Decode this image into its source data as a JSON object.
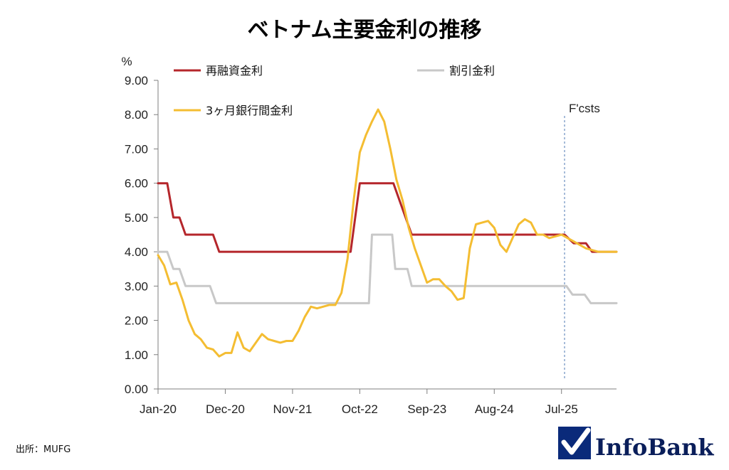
{
  "title": "ベトナム主要金利の推移",
  "source": "出所：MUFG",
  "brand": {
    "name": "InfoBank",
    "color": "#0a1e5a"
  },
  "forecast_label": "F'csts",
  "chart_data": {
    "type": "line",
    "ylabel": "%",
    "ylim": [
      0,
      9
    ],
    "yticks": [
      "0.00",
      "1.00",
      "2.00",
      "3.00",
      "4.00",
      "5.00",
      "6.00",
      "7.00",
      "8.00",
      "9.00"
    ],
    "xticks": [
      {
        "label": "Jan-20",
        "t": 0
      },
      {
        "label": "Dec-20",
        "t": 11
      },
      {
        "label": "Nov-21",
        "t": 22
      },
      {
        "label": "Oct-22",
        "t": 33
      },
      {
        "label": "Sep-23",
        "t": 44
      },
      {
        "label": "Aug-24",
        "t": 55
      },
      {
        "label": "Jul-25",
        "t": 66
      }
    ],
    "x_range": [
      0,
      75
    ],
    "forecast_start": 66.5,
    "legend": "top",
    "grid": false,
    "series": [
      {
        "name": "再融資金利",
        "color": "#b5262b",
        "points": [
          [
            0,
            6
          ],
          [
            1.5,
            6
          ],
          [
            2.5,
            5
          ],
          [
            3.5,
            5
          ],
          [
            4.5,
            4.5
          ],
          [
            9,
            4.5
          ],
          [
            10,
            4
          ],
          [
            31.5,
            4
          ],
          [
            33,
            6
          ],
          [
            38.5,
            6
          ],
          [
            41.5,
            4.5
          ],
          [
            66.5,
            4.5
          ],
          [
            68,
            4.25
          ],
          [
            70,
            4.25
          ],
          [
            71,
            4
          ],
          [
            75,
            4
          ]
        ]
      },
      {
        "name": "割引金利",
        "color": "#c8c8c8",
        "points": [
          [
            0,
            4
          ],
          [
            1.5,
            4
          ],
          [
            2.5,
            3.5
          ],
          [
            3.5,
            3.5
          ],
          [
            4.5,
            3
          ],
          [
            8.5,
            3
          ],
          [
            9.5,
            2.5
          ],
          [
            34.5,
            2.5
          ],
          [
            35,
            4.5
          ],
          [
            38.3,
            4.5
          ],
          [
            38.8,
            3.5
          ],
          [
            40.8,
            3.5
          ],
          [
            41.5,
            3
          ],
          [
            66.8,
            3
          ],
          [
            67.8,
            2.75
          ],
          [
            69.8,
            2.75
          ],
          [
            70.8,
            2.5
          ],
          [
            75,
            2.5
          ]
        ]
      },
      {
        "name": "3ヶ月銀行間金利",
        "color": "#f4bd32",
        "points": [
          [
            0,
            3.9
          ],
          [
            1,
            3.6
          ],
          [
            2,
            3.05
          ],
          [
            3,
            3.1
          ],
          [
            4,
            2.6
          ],
          [
            5,
            2
          ],
          [
            6,
            1.6
          ],
          [
            7,
            1.45
          ],
          [
            8,
            1.2
          ],
          [
            9,
            1.15
          ],
          [
            10,
            0.95
          ],
          [
            11,
            1.05
          ],
          [
            12,
            1.05
          ],
          [
            13,
            1.65
          ],
          [
            14,
            1.2
          ],
          [
            15,
            1.1
          ],
          [
            16,
            1.35
          ],
          [
            17,
            1.6
          ],
          [
            18,
            1.45
          ],
          [
            19,
            1.4
          ],
          [
            20,
            1.35
          ],
          [
            21,
            1.4
          ],
          [
            22,
            1.4
          ],
          [
            23,
            1.7
          ],
          [
            24,
            2.1
          ],
          [
            25,
            2.4
          ],
          [
            26,
            2.35
          ],
          [
            27,
            2.4
          ],
          [
            28,
            2.45
          ],
          [
            29,
            2.45
          ],
          [
            30,
            2.8
          ],
          [
            31,
            3.8
          ],
          [
            32,
            5.5
          ],
          [
            33,
            6.9
          ],
          [
            34,
            7.4
          ],
          [
            35,
            7.8
          ],
          [
            36,
            8.15
          ],
          [
            37,
            7.8
          ],
          [
            38,
            7
          ],
          [
            39,
            6.1
          ],
          [
            40,
            5.5
          ],
          [
            41,
            4.7
          ],
          [
            42,
            4.1
          ],
          [
            43,
            3.6
          ],
          [
            44,
            3.1
          ],
          [
            45,
            3.2
          ],
          [
            46,
            3.2
          ],
          [
            47,
            3
          ],
          [
            48,
            2.85
          ],
          [
            49,
            2.6
          ],
          [
            50,
            2.65
          ],
          [
            51,
            4.1
          ],
          [
            52,
            4.8
          ],
          [
            53,
            4.85
          ],
          [
            54,
            4.9
          ],
          [
            55,
            4.7
          ],
          [
            56,
            4.2
          ],
          [
            57,
            4
          ],
          [
            58,
            4.4
          ],
          [
            59,
            4.8
          ],
          [
            60,
            4.95
          ],
          [
            61,
            4.85
          ],
          [
            62,
            4.5
          ],
          [
            63,
            4.5
          ],
          [
            64,
            4.4
          ],
          [
            65,
            4.45
          ],
          [
            66,
            4.5
          ],
          [
            67,
            4.4
          ],
          [
            68,
            4.3
          ],
          [
            69,
            4.2
          ],
          [
            70,
            4.1
          ],
          [
            71,
            4.05
          ],
          [
            72,
            4
          ],
          [
            73,
            4
          ],
          [
            74,
            4
          ],
          [
            75,
            4
          ]
        ]
      }
    ]
  }
}
